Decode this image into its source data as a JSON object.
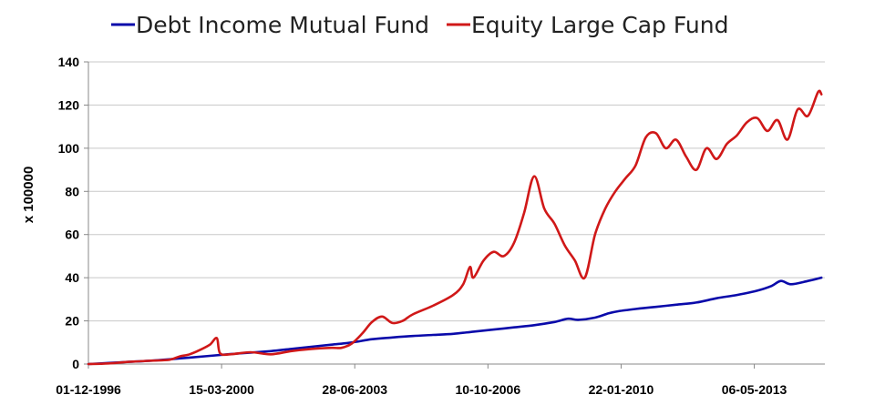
{
  "chart_data": {
    "type": "line",
    "title": "",
    "xlabel": "",
    "ylabel": "x 100000",
    "ylim": [
      0,
      140
    ],
    "yticks": [
      0,
      20,
      40,
      60,
      80,
      100,
      120,
      140
    ],
    "xlim": [
      "1996-12-01",
      "2015-02-01"
    ],
    "xtick_labels": [
      "01-12-1996",
      "15-03-2000",
      "28-06-2003",
      "10-10-2006",
      "22-01-2010",
      "06-05-2013"
    ],
    "grid": "horizontal",
    "legend": "top",
    "series": [
      {
        "name": "Debt Income Mutual Fund",
        "color": "#0a0aaa",
        "points": [
          [
            "1996-12-01",
            0.0
          ],
          [
            "1997-06-01",
            0.5
          ],
          [
            "1997-12-01",
            1.0
          ],
          [
            "1998-06-01",
            1.5
          ],
          [
            "1998-12-01",
            2.2
          ],
          [
            "1999-06-01",
            3.0
          ],
          [
            "1999-12-01",
            3.8
          ],
          [
            "2000-06-01",
            4.6
          ],
          [
            "2000-12-01",
            5.3
          ],
          [
            "2001-06-01",
            6.0
          ],
          [
            "2001-12-01",
            7.0
          ],
          [
            "2002-06-01",
            8.0
          ],
          [
            "2002-12-01",
            9.0
          ],
          [
            "2003-06-01",
            10.0
          ],
          [
            "2003-12-01",
            11.5
          ],
          [
            "2004-06-01",
            12.3
          ],
          [
            "2004-12-01",
            13.0
          ],
          [
            "2005-06-01",
            13.5
          ],
          [
            "2005-12-01",
            14.0
          ],
          [
            "2006-06-01",
            15.0
          ],
          [
            "2006-12-01",
            16.0
          ],
          [
            "2007-06-01",
            17.0
          ],
          [
            "2007-12-01",
            18.0
          ],
          [
            "2008-06-01",
            19.5
          ],
          [
            "2008-10-01",
            21.0
          ],
          [
            "2009-01-01",
            20.5
          ],
          [
            "2009-06-01",
            21.5
          ],
          [
            "2009-10-01",
            23.5
          ],
          [
            "2010-01-01",
            24.5
          ],
          [
            "2010-06-01",
            25.5
          ],
          [
            "2010-12-01",
            26.5
          ],
          [
            "2011-06-01",
            27.5
          ],
          [
            "2011-12-01",
            28.5
          ],
          [
            "2012-06-01",
            30.5
          ],
          [
            "2012-12-01",
            32.0
          ],
          [
            "2013-06-01",
            34.0
          ],
          [
            "2013-10-01",
            36.0
          ],
          [
            "2014-01-01",
            38.5
          ],
          [
            "2014-04-01",
            37.0
          ],
          [
            "2014-09-01",
            38.5
          ],
          [
            "2015-01-01",
            40.0
          ]
        ]
      },
      {
        "name": "Equity Large Cap Fund",
        "color": "#d01818",
        "points": [
          [
            "1996-12-01",
            0.0
          ],
          [
            "1997-06-01",
            0.3
          ],
          [
            "1997-12-01",
            1.0
          ],
          [
            "1998-06-01",
            1.5
          ],
          [
            "1998-12-01",
            2.0
          ],
          [
            "1999-03-01",
            3.5
          ],
          [
            "1999-06-01",
            4.5
          ],
          [
            "1999-09-01",
            6.5
          ],
          [
            "1999-12-01",
            9.0
          ],
          [
            "2000-02-01",
            12.0
          ],
          [
            "2000-03-01",
            5.0
          ],
          [
            "2000-06-01",
            4.5
          ],
          [
            "2000-12-01",
            5.5
          ],
          [
            "2001-06-01",
            4.5
          ],
          [
            "2001-12-01",
            6.0
          ],
          [
            "2002-06-01",
            7.0
          ],
          [
            "2002-12-01",
            7.5
          ],
          [
            "2003-03-01",
            7.5
          ],
          [
            "2003-06-01",
            9.5
          ],
          [
            "2003-09-01",
            14.0
          ],
          [
            "2003-12-01",
            19.5
          ],
          [
            "2004-03-01",
            22.0
          ],
          [
            "2004-06-01",
            19.0
          ],
          [
            "2004-09-01",
            20.0
          ],
          [
            "2004-12-01",
            23.0
          ],
          [
            "2005-06-01",
            27.0
          ],
          [
            "2005-12-01",
            32.0
          ],
          [
            "2006-03-01",
            37.0
          ],
          [
            "2006-05-01",
            45.0
          ],
          [
            "2006-06-01",
            40.0
          ],
          [
            "2006-09-01",
            48.0
          ],
          [
            "2006-12-01",
            52.0
          ],
          [
            "2007-03-01",
            50.0
          ],
          [
            "2007-06-01",
            56.0
          ],
          [
            "2007-09-01",
            70.0
          ],
          [
            "2007-12-01",
            87.0
          ],
          [
            "2008-03-01",
            72.0
          ],
          [
            "2008-06-01",
            65.0
          ],
          [
            "2008-09-01",
            55.0
          ],
          [
            "2008-12-01",
            48.0
          ],
          [
            "2009-03-01",
            40.0
          ],
          [
            "2009-06-01",
            60.0
          ],
          [
            "2009-09-01",
            72.0
          ],
          [
            "2009-12-01",
            80.0
          ],
          [
            "2010-03-01",
            86.0
          ],
          [
            "2010-06-01",
            92.0
          ],
          [
            "2010-09-01",
            105.0
          ],
          [
            "2010-12-01",
            107.0
          ],
          [
            "2011-03-01",
            100.0
          ],
          [
            "2011-06-01",
            104.0
          ],
          [
            "2011-09-01",
            96.0
          ],
          [
            "2011-12-01",
            90.0
          ],
          [
            "2012-03-01",
            100.0
          ],
          [
            "2012-06-01",
            95.0
          ],
          [
            "2012-09-01",
            102.0
          ],
          [
            "2012-12-01",
            106.0
          ],
          [
            "2013-03-01",
            112.0
          ],
          [
            "2013-06-01",
            114.0
          ],
          [
            "2013-09-01",
            108.0
          ],
          [
            "2013-12-01",
            113.0
          ],
          [
            "2014-03-01",
            104.0
          ],
          [
            "2014-06-01",
            118.0
          ],
          [
            "2014-09-01",
            115.0
          ],
          [
            "2014-12-01",
            126.0
          ],
          [
            "2015-01-01",
            125.0
          ]
        ]
      }
    ]
  }
}
